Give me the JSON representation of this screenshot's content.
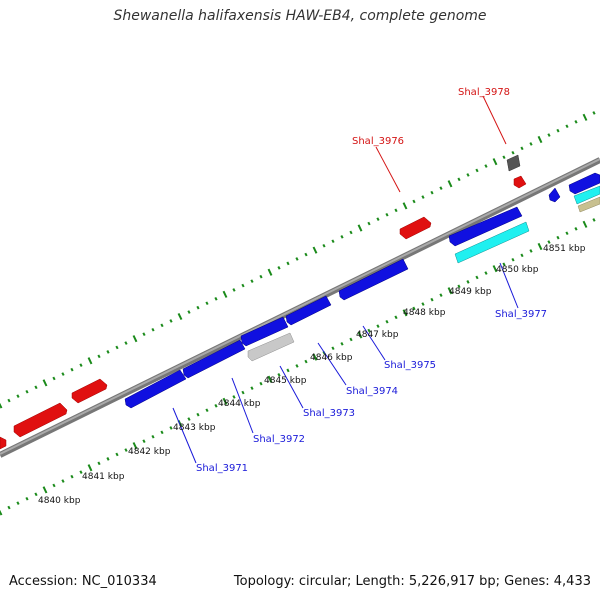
{
  "title": "Shewanella halifaxensis HAW-EB4, complete genome",
  "footer": {
    "accession": "Accession: NC_010334",
    "summary": "Topology: circular; Length: 5,226,917 bp; Genes: 4,433"
  },
  "colors": {
    "forward_gene": "#e01010",
    "reverse_gene": "#1010e0",
    "rna_gene": "#20f0f0",
    "pseudo_gene": "#c8c8c8",
    "dark_gene": "#555555",
    "olive_gene": "#c8c090",
    "backbone": "#888888",
    "tick": "#1a8a1a",
    "label_blue": "#1a1ad9",
    "label_red": "#d41414"
  },
  "scale_labels": [
    "4840 kbp",
    "4841 kbp",
    "4842 kbp",
    "4843 kbp",
    "4844 kbp",
    "4845 kbp",
    "4846 kbp",
    "4847 kbp",
    "4848 kbp",
    "4849 kbp",
    "4850 kbp",
    "4851 kbp"
  ],
  "gene_labels": [
    {
      "text": "Shal_3971",
      "color": "blue"
    },
    {
      "text": "Shal_3972",
      "color": "blue"
    },
    {
      "text": "Shal_3973",
      "color": "blue"
    },
    {
      "text": "Shal_3974",
      "color": "blue"
    },
    {
      "text": "Shal_3975",
      "color": "blue"
    },
    {
      "text": "Shal_3977",
      "color": "blue"
    },
    {
      "text": "Shal_3976",
      "color": "red"
    },
    {
      "text": "Shal_3978",
      "color": "red"
    }
  ]
}
